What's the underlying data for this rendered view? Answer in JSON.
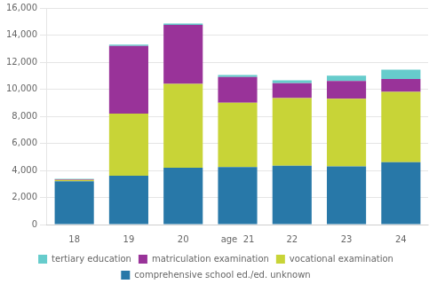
{
  "chart_data": {
    "type": "bar",
    "stacked": true,
    "categories": [
      "18",
      "19",
      "20",
      "age  21",
      "22",
      "23",
      "24"
    ],
    "series": [
      {
        "name": "comprehensive school ed./ed. unknown",
        "color": "#2878a8",
        "values": [
          3200,
          3600,
          4200,
          4250,
          4350,
          4300,
          4600
        ]
      },
      {
        "name": "vocational examination",
        "color": "#c8d437",
        "values": [
          100,
          4600,
          6200,
          4750,
          5000,
          5000,
          5200
        ]
      },
      {
        "name": "matriculation examination",
        "color": "#993399",
        "values": [
          50,
          5000,
          4350,
          1900,
          1100,
          1300,
          950
        ]
      },
      {
        "name": "tertiary education",
        "color": "#66cccc",
        "values": [
          30,
          100,
          100,
          150,
          200,
          400,
          700
        ]
      }
    ],
    "ylim": [
      0,
      16000
    ],
    "yticks": [
      0,
      {
        "value": 2000,
        "label": "2,000"
      },
      {
        "value": 4000,
        "label": "4,000"
      },
      {
        "value": 6000,
        "label": "6,000"
      },
      {
        "value": 8000,
        "label": "8,000"
      },
      {
        "value": 10000,
        "label": "10,000"
      },
      {
        "value": 12000,
        "label": "12,000"
      },
      {
        "value": 14000,
        "label": "14,000"
      },
      {
        "value": 16000,
        "label": "16,000"
      }
    ],
    "grid": true,
    "legend": "bottom"
  }
}
